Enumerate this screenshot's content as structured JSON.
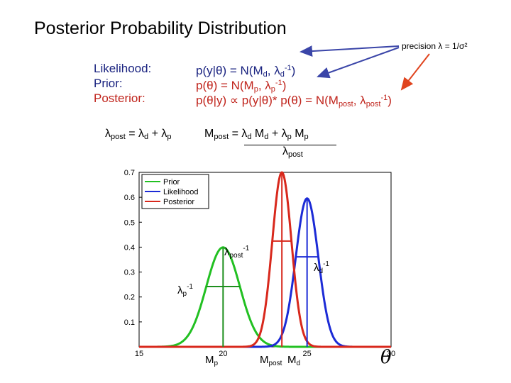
{
  "title": "Posterior Probability Distribution",
  "precision_note": "precision λ = 1/σ²",
  "labels": {
    "likelihood": "Likelihood:",
    "prior": "Prior:",
    "posterior": "Posterior:"
  },
  "equations": {
    "likelihood": {
      "lhs": "p(y|θ) = N(M",
      "m_sub": "d",
      "mid": ", λ",
      "l_sub": "d",
      "sup": "-1",
      "end": ")"
    },
    "prior": {
      "lhs": "p(θ) = N(M",
      "m_sub": "p",
      "mid": ", λ",
      "l_sub": "p",
      "sup": "-1",
      "end": ")"
    },
    "posterior": {
      "lhs": "p(θ|y) ∝ p(y|θ)* p(θ) = N(M",
      "m_sub": "post",
      "mid": ", λ",
      "l_sub": "post",
      "sup": "-1",
      "end": ")"
    }
  },
  "lambda_eq": {
    "a": "λ",
    "a_sub": "post",
    "b": " = λ",
    "b_sub": "d",
    "c": " + λ",
    "c_sub": "p"
  },
  "mean_eq": {
    "a": "M",
    "a_sub": "post",
    "b": " = λ",
    "b_sub": "d",
    "c": " M",
    "c_sub": "d",
    "d": " + λ",
    "d_sub": "p",
    "e": " M",
    "e_sub": "p",
    "den": "λ",
    "den_sub": "post"
  },
  "chart_data": {
    "type": "line",
    "title": "",
    "xlabel": "θ",
    "ylabel": "",
    "xlim": [
      15,
      30
    ],
    "ylim": [
      0,
      0.7
    ],
    "x_ticks": [
      15,
      20,
      25,
      30
    ],
    "y_ticks": [
      0.1,
      0.2,
      0.3,
      0.4,
      0.5,
      0.6,
      0.7
    ],
    "grid": false,
    "legend_position": "top-left",
    "series": [
      {
        "name": "Prior",
        "color": "#22c022",
        "distribution": "normal",
        "mean": 20,
        "sd": 1.0
      },
      {
        "name": "Likelihood",
        "color": "#1c2bd6",
        "distribution": "normal",
        "mean": 25,
        "sd": 0.67
      },
      {
        "name": "Posterior",
        "color": "#d8281c",
        "distribution": "normal",
        "mean": 23.5,
        "sd": 0.57
      }
    ],
    "annotations": [
      {
        "text": "λpost-1"
      },
      {
        "text": "λd-1"
      },
      {
        "text": "λp-1"
      },
      {
        "text": "Mp"
      },
      {
        "text": "Mpost"
      },
      {
        "text": "Md"
      }
    ]
  }
}
